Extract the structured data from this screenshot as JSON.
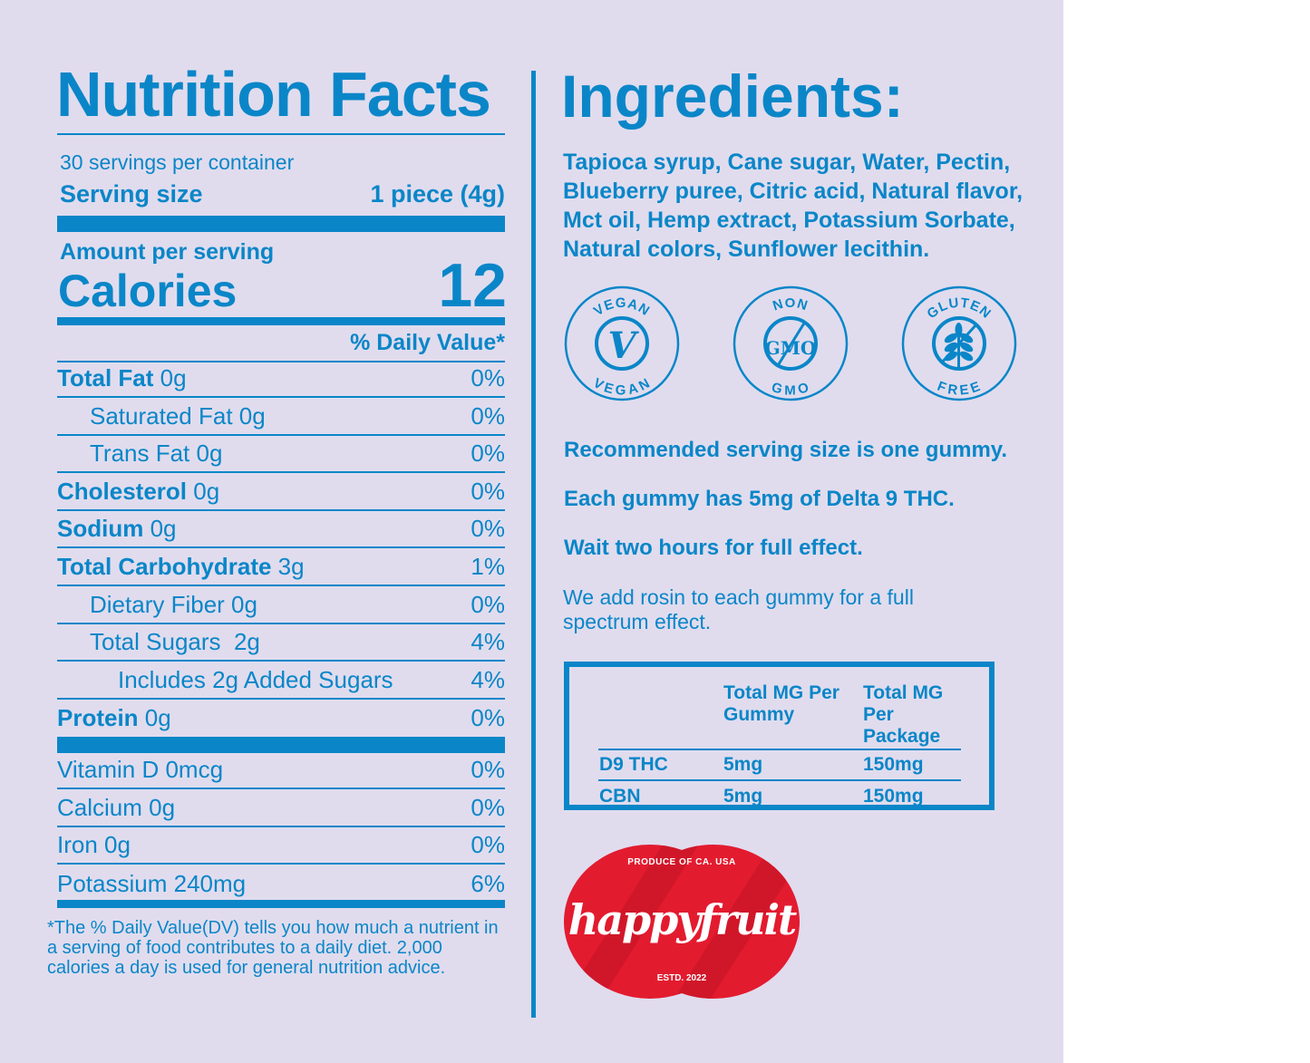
{
  "nutrition": {
    "title": "Nutrition Facts",
    "servings": "30 servings per container",
    "serving_size_label": "Serving size",
    "serving_size_value": "1 piece (4g)",
    "amount_per_serving": "Amount per serving",
    "calories_label": "Calories",
    "calories_value": "12",
    "dv_header": "% Daily Value*",
    "rows": [
      {
        "name": "Total Fat",
        "amount": " 0g",
        "dv": "0%",
        "bold": true,
        "indent": 0
      },
      {
        "name": "Saturated Fat 0g",
        "amount": "",
        "dv": "0%",
        "bold": false,
        "indent": 1
      },
      {
        "name": "Trans Fat 0g",
        "amount": "",
        "dv": "0%",
        "bold": false,
        "indent": 1
      },
      {
        "name": "Cholesterol",
        "amount": " 0g",
        "dv": "0%",
        "bold": true,
        "indent": 0
      },
      {
        "name": "Sodium",
        "amount": " 0g",
        "dv": "0%",
        "bold": true,
        "indent": 0
      },
      {
        "name": "Total Carbohydrate",
        "amount": " 3g",
        "dv": "1%",
        "bold": true,
        "indent": 0
      },
      {
        "name": "Dietary Fiber 0g",
        "amount": "",
        "dv": "0%",
        "bold": false,
        "indent": 1
      },
      {
        "name": "Total Sugars  2g",
        "amount": "",
        "dv": "4%",
        "bold": false,
        "indent": 1
      },
      {
        "name": "Includes 2g Added Sugars",
        "amount": "",
        "dv": "4%",
        "bold": false,
        "indent": 2
      },
      {
        "name": "Protein",
        "amount": " 0g",
        "dv": "0%",
        "bold": true,
        "indent": 0
      }
    ],
    "vitamins": [
      {
        "name": "Vitamin D 0mcg",
        "dv": "0%"
      },
      {
        "name": "Calcium 0g",
        "dv": "0%"
      },
      {
        "name": "Iron 0g",
        "dv": "0%"
      },
      {
        "name": "Potassium 240mg",
        "dv": "6%"
      }
    ],
    "footnote": "*The % Daily Value(DV) tells you how much a nutrient in a serving of food contributes to a daily diet. 2,000 calories a day is used for general nutrition advice."
  },
  "ingredients": {
    "title": "Ingredients:",
    "text": "Tapioca syrup, Cane sugar, Water, Pectin, Blueberry puree, Citric acid, Natural flavor, Mct oil, Hemp extract, Potassium Sorbate, Natural colors, Sunflower lecithin."
  },
  "badges": [
    {
      "top": "VEGAN",
      "bottom": "VEGAN",
      "center": "V",
      "icon": "vegan-icon"
    },
    {
      "top": "NON",
      "bottom": "GMO",
      "center": "GMO",
      "icon": "non-gmo-icon"
    },
    {
      "top": "GLUTEN",
      "bottom": "FREE",
      "center": "",
      "icon": "wheat-icon"
    }
  ],
  "notes": [
    "Recommended serving size is one gummy.",
    "Each gummy has 5mg of Delta 9 THC.",
    "Wait two hours for full effect."
  ],
  "rosin_note": "We add rosin to each gummy for a full spectrum effect.",
  "dose_table": {
    "headers": [
      "",
      "Total MG Per Gummy",
      "Total MG Per Package"
    ],
    "rows": [
      [
        "D9 THC",
        "5mg",
        "150mg"
      ],
      [
        "CBN",
        "5mg",
        "150mg"
      ]
    ]
  },
  "logo": {
    "top": "PRODUCE OF CA. USA",
    "brand": "happyfruit",
    "bottom": "ESTD. 2022"
  },
  "colors": {
    "background": "#e0dcee",
    "accent": "#0a86c8",
    "logo_red": "#e31b2f"
  }
}
